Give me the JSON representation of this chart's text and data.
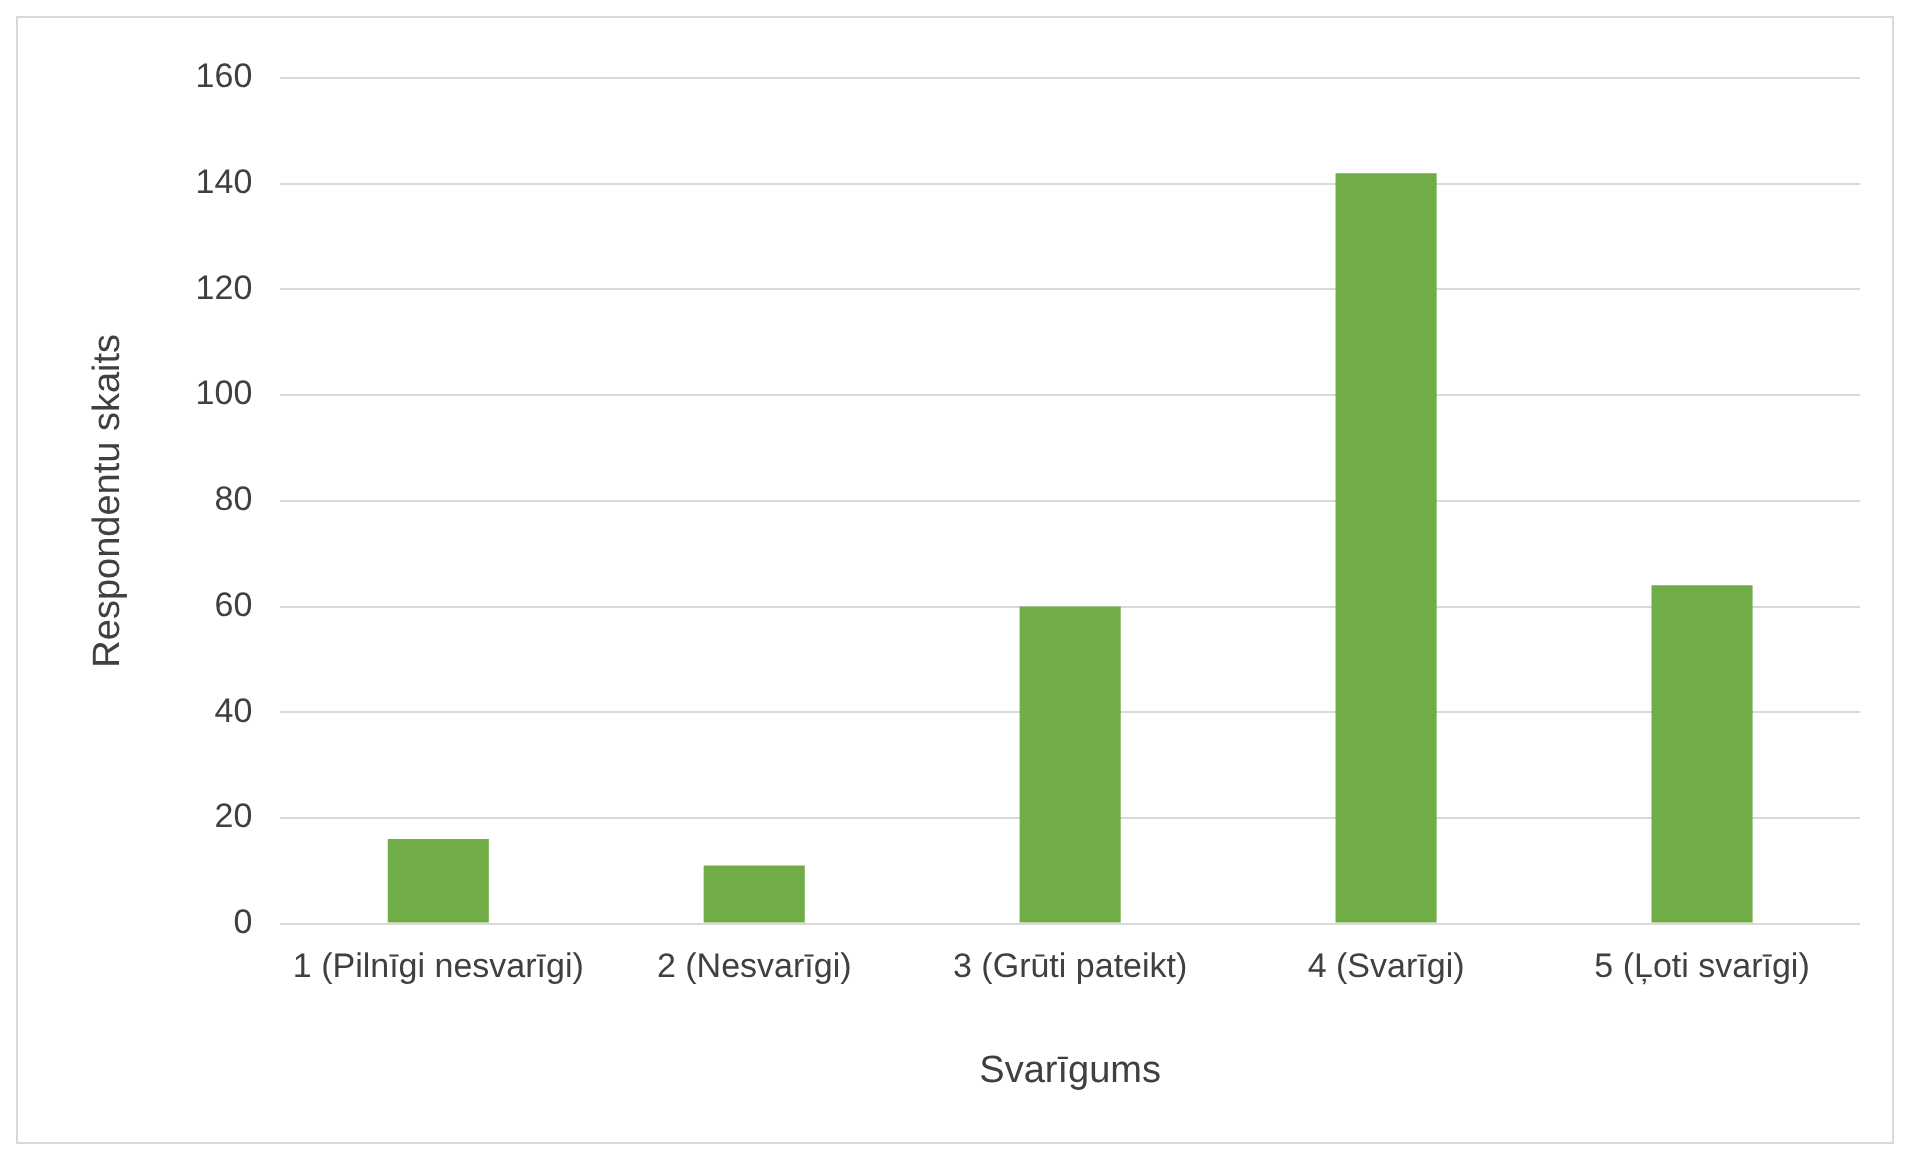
{
  "chart_data": {
    "type": "bar",
    "xlabel": "Svarīgums",
    "ylabel": "Respondentu skaits",
    "categories": [
      "1 (Pilnīgi nesvarīgi)",
      "2 (Nesvarīgi)",
      "3 (Grūti pateikt)",
      "4 (Svarīgi)",
      "5 (Ļoti svarīgi)"
    ],
    "values": [
      16,
      11,
      60,
      142,
      64
    ],
    "color": "#70ad47",
    "ylim": [
      0,
      160
    ],
    "yticks": [
      0,
      20,
      40,
      60,
      80,
      100,
      120,
      140,
      160
    ],
    "grid": "y"
  }
}
